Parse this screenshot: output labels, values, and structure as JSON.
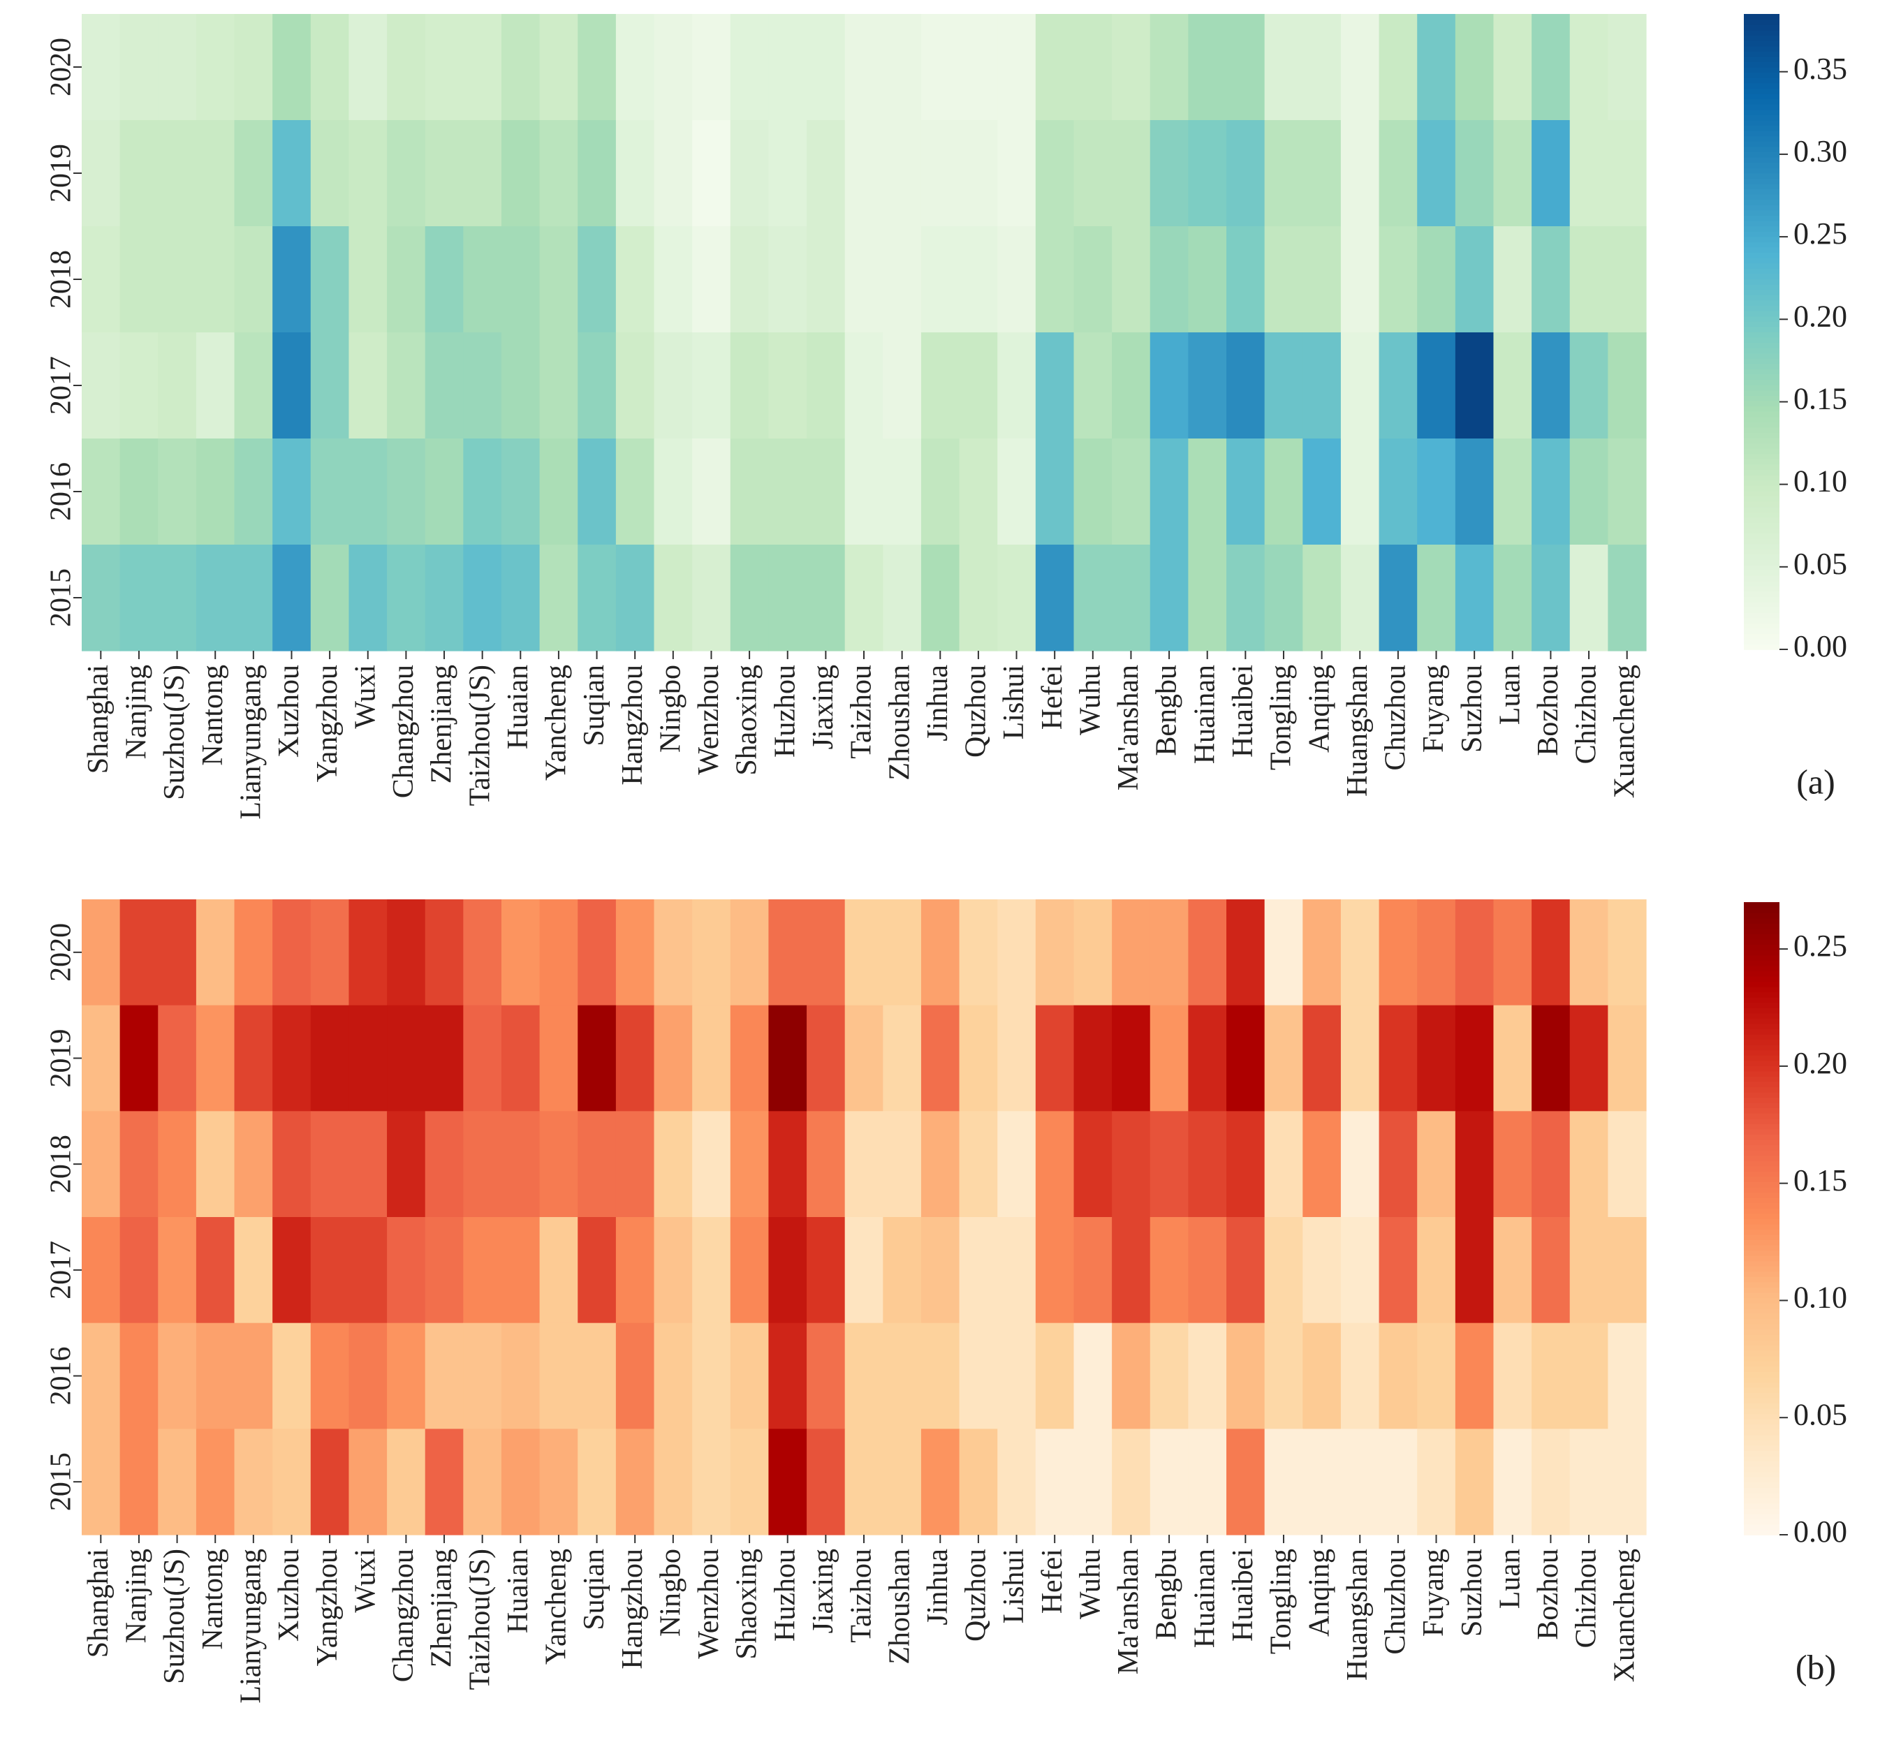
{
  "chart_data": [
    {
      "type": "heatmap",
      "panel_label": "(a)",
      "colormap": "GnBu",
      "vmin": 0.0,
      "vmax": 0.385,
      "colorbar_ticks": [
        "0.00",
        "0.05",
        "0.10",
        "0.15",
        "0.20",
        "0.25",
        "0.30",
        "0.35"
      ],
      "rows": [
        "2020",
        "2019",
        "2018",
        "2017",
        "2016",
        "2015"
      ],
      "columns": [
        "Shanghai",
        "Nanjing",
        "Suzhou(JS)",
        "Nantong",
        "Lianyungang",
        "Xuzhou",
        "Yangzhou",
        "Wuxi",
        "Changzhou",
        "Zhenjiang",
        "Taizhou(JS)",
        "Huaian",
        "Yancheng",
        "Suqian",
        "Hangzhou",
        "Ningbo",
        "Wenzhou",
        "Shaoxing",
        "Huzhou",
        "Jiaxing",
        "Taizhou",
        "Zhoushan",
        "Jinhua",
        "Quzhou",
        "Lishui",
        "Hefei",
        "Wuhu",
        "Ma'anshan",
        "Bengbu",
        "Huainan",
        "Huaibei",
        "Tongling",
        "Anqing",
        "Huangshan",
        "Chuzhou",
        "Fuyang",
        "Suzhou",
        "Luan",
        "Bozhou",
        "Chizhou",
        "Xuancheng"
      ],
      "values": [
        [
          0.06,
          0.07,
          0.07,
          0.08,
          0.09,
          0.14,
          0.1,
          0.06,
          0.09,
          0.08,
          0.08,
          0.11,
          0.09,
          0.13,
          0.04,
          0.03,
          0.02,
          0.05,
          0.05,
          0.05,
          0.03,
          0.03,
          0.02,
          0.02,
          0.02,
          0.1,
          0.1,
          0.09,
          0.12,
          0.15,
          0.15,
          0.06,
          0.06,
          0.03,
          0.1,
          0.2,
          0.14,
          0.09,
          0.16,
          0.08,
          0.07
        ],
        [
          0.07,
          0.1,
          0.1,
          0.1,
          0.13,
          0.22,
          0.11,
          0.1,
          0.12,
          0.11,
          0.11,
          0.14,
          0.12,
          0.15,
          0.05,
          0.03,
          0.01,
          0.06,
          0.05,
          0.07,
          0.03,
          0.03,
          0.03,
          0.03,
          0.02,
          0.12,
          0.11,
          0.11,
          0.18,
          0.19,
          0.2,
          0.12,
          0.12,
          0.03,
          0.13,
          0.22,
          0.16,
          0.12,
          0.25,
          0.08,
          0.08
        ],
        [
          0.08,
          0.1,
          0.1,
          0.1,
          0.11,
          0.28,
          0.18,
          0.1,
          0.13,
          0.17,
          0.15,
          0.15,
          0.13,
          0.18,
          0.08,
          0.04,
          0.02,
          0.07,
          0.06,
          0.07,
          0.03,
          0.03,
          0.04,
          0.04,
          0.03,
          0.12,
          0.13,
          0.11,
          0.16,
          0.15,
          0.19,
          0.11,
          0.11,
          0.03,
          0.12,
          0.15,
          0.2,
          0.07,
          0.18,
          0.1,
          0.1
        ],
        [
          0.07,
          0.08,
          0.09,
          0.06,
          0.12,
          0.3,
          0.18,
          0.09,
          0.12,
          0.16,
          0.16,
          0.15,
          0.13,
          0.17,
          0.09,
          0.06,
          0.05,
          0.1,
          0.09,
          0.1,
          0.04,
          0.03,
          0.1,
          0.1,
          0.05,
          0.21,
          0.12,
          0.14,
          0.25,
          0.27,
          0.29,
          0.21,
          0.21,
          0.04,
          0.21,
          0.31,
          0.38,
          0.1,
          0.28,
          0.18,
          0.14
        ],
        [
          0.12,
          0.14,
          0.13,
          0.14,
          0.16,
          0.22,
          0.17,
          0.17,
          0.16,
          0.15,
          0.19,
          0.18,
          0.14,
          0.21,
          0.12,
          0.05,
          0.03,
          0.11,
          0.11,
          0.11,
          0.04,
          0.04,
          0.11,
          0.09,
          0.04,
          0.21,
          0.14,
          0.13,
          0.22,
          0.14,
          0.22,
          0.14,
          0.24,
          0.04,
          0.22,
          0.24,
          0.28,
          0.12,
          0.22,
          0.15,
          0.13
        ],
        [
          0.18,
          0.19,
          0.19,
          0.2,
          0.2,
          0.27,
          0.15,
          0.21,
          0.19,
          0.2,
          0.22,
          0.21,
          0.13,
          0.19,
          0.2,
          0.09,
          0.07,
          0.15,
          0.15,
          0.15,
          0.08,
          0.06,
          0.14,
          0.09,
          0.08,
          0.28,
          0.17,
          0.17,
          0.22,
          0.14,
          0.18,
          0.16,
          0.12,
          0.06,
          0.28,
          0.15,
          0.23,
          0.15,
          0.21,
          0.06,
          0.16
        ]
      ]
    },
    {
      "type": "heatmap",
      "panel_label": "(b)",
      "colormap": "OrRd",
      "vmin": 0.0,
      "vmax": 0.27,
      "colorbar_ticks": [
        "0.00",
        "0.05",
        "0.10",
        "0.15",
        "0.20",
        "0.25"
      ],
      "rows": [
        "2020",
        "2019",
        "2018",
        "2017",
        "2016",
        "2015"
      ],
      "columns": [
        "Shanghai",
        "Nanjing",
        "Suzhou(JS)",
        "Nantong",
        "Lianyungang",
        "Xuzhou",
        "Yangzhou",
        "Wuxi",
        "Changzhou",
        "Zhenjiang",
        "Taizhou(JS)",
        "Huaian",
        "Yancheng",
        "Suqian",
        "Hangzhou",
        "Ningbo",
        "Wenzhou",
        "Shaoxing",
        "Huzhou",
        "Jiaxing",
        "Taizhou",
        "Zhoushan",
        "Jinhua",
        "Quzhou",
        "Lishui",
        "Hefei",
        "Wuhu",
        "Ma'anshan",
        "Bengbu",
        "Huainan",
        "Huaibei",
        "Tongling",
        "Anqing",
        "Huangshan",
        "Chuzhou",
        "Fuyang",
        "Suzhou",
        "Luan",
        "Bozhou",
        "Chizhou",
        "Xuancheng"
      ],
      "values": [
        [
          0.12,
          0.19,
          0.19,
          0.1,
          0.14,
          0.17,
          0.16,
          0.2,
          0.21,
          0.19,
          0.16,
          0.13,
          0.14,
          0.17,
          0.13,
          0.09,
          0.08,
          0.1,
          0.16,
          0.16,
          0.07,
          0.07,
          0.12,
          0.06,
          0.05,
          0.09,
          0.08,
          0.12,
          0.12,
          0.16,
          0.21,
          0.02,
          0.11,
          0.06,
          0.14,
          0.15,
          0.17,
          0.15,
          0.2,
          0.09,
          0.07
        ],
        [
          0.1,
          0.24,
          0.17,
          0.13,
          0.19,
          0.21,
          0.22,
          0.22,
          0.22,
          0.22,
          0.17,
          0.18,
          0.14,
          0.25,
          0.19,
          0.12,
          0.08,
          0.14,
          0.26,
          0.18,
          0.09,
          0.06,
          0.16,
          0.07,
          0.05,
          0.19,
          0.22,
          0.23,
          0.13,
          0.21,
          0.24,
          0.09,
          0.19,
          0.06,
          0.2,
          0.22,
          0.23,
          0.08,
          0.25,
          0.21,
          0.08
        ],
        [
          0.11,
          0.16,
          0.14,
          0.08,
          0.12,
          0.18,
          0.17,
          0.17,
          0.21,
          0.17,
          0.16,
          0.16,
          0.15,
          0.16,
          0.16,
          0.07,
          0.04,
          0.13,
          0.21,
          0.15,
          0.05,
          0.05,
          0.11,
          0.06,
          0.03,
          0.14,
          0.2,
          0.19,
          0.18,
          0.19,
          0.2,
          0.05,
          0.14,
          0.02,
          0.18,
          0.1,
          0.22,
          0.15,
          0.17,
          0.08,
          0.04
        ],
        [
          0.14,
          0.17,
          0.13,
          0.18,
          0.07,
          0.21,
          0.19,
          0.19,
          0.17,
          0.16,
          0.14,
          0.14,
          0.08,
          0.19,
          0.14,
          0.09,
          0.06,
          0.14,
          0.22,
          0.2,
          0.04,
          0.08,
          0.09,
          0.04,
          0.04,
          0.14,
          0.15,
          0.19,
          0.14,
          0.15,
          0.18,
          0.06,
          0.04,
          0.03,
          0.17,
          0.08,
          0.22,
          0.09,
          0.16,
          0.08,
          0.08
        ],
        [
          0.1,
          0.14,
          0.11,
          0.12,
          0.12,
          0.07,
          0.14,
          0.15,
          0.13,
          0.09,
          0.09,
          0.1,
          0.08,
          0.08,
          0.15,
          0.08,
          0.06,
          0.08,
          0.21,
          0.16,
          0.07,
          0.07,
          0.07,
          0.04,
          0.04,
          0.07,
          0.02,
          0.11,
          0.06,
          0.04,
          0.1,
          0.06,
          0.08,
          0.04,
          0.08,
          0.07,
          0.14,
          0.05,
          0.07,
          0.07,
          0.03
        ],
        [
          0.1,
          0.14,
          0.1,
          0.13,
          0.09,
          0.08,
          0.19,
          0.12,
          0.08,
          0.17,
          0.1,
          0.12,
          0.11,
          0.07,
          0.12,
          0.08,
          0.06,
          0.07,
          0.24,
          0.18,
          0.07,
          0.07,
          0.13,
          0.08,
          0.04,
          0.02,
          0.02,
          0.05,
          0.02,
          0.02,
          0.15,
          0.02,
          0.02,
          0.02,
          0.02,
          0.04,
          0.08,
          0.02,
          0.04,
          0.03,
          0.03
        ]
      ]
    }
  ]
}
